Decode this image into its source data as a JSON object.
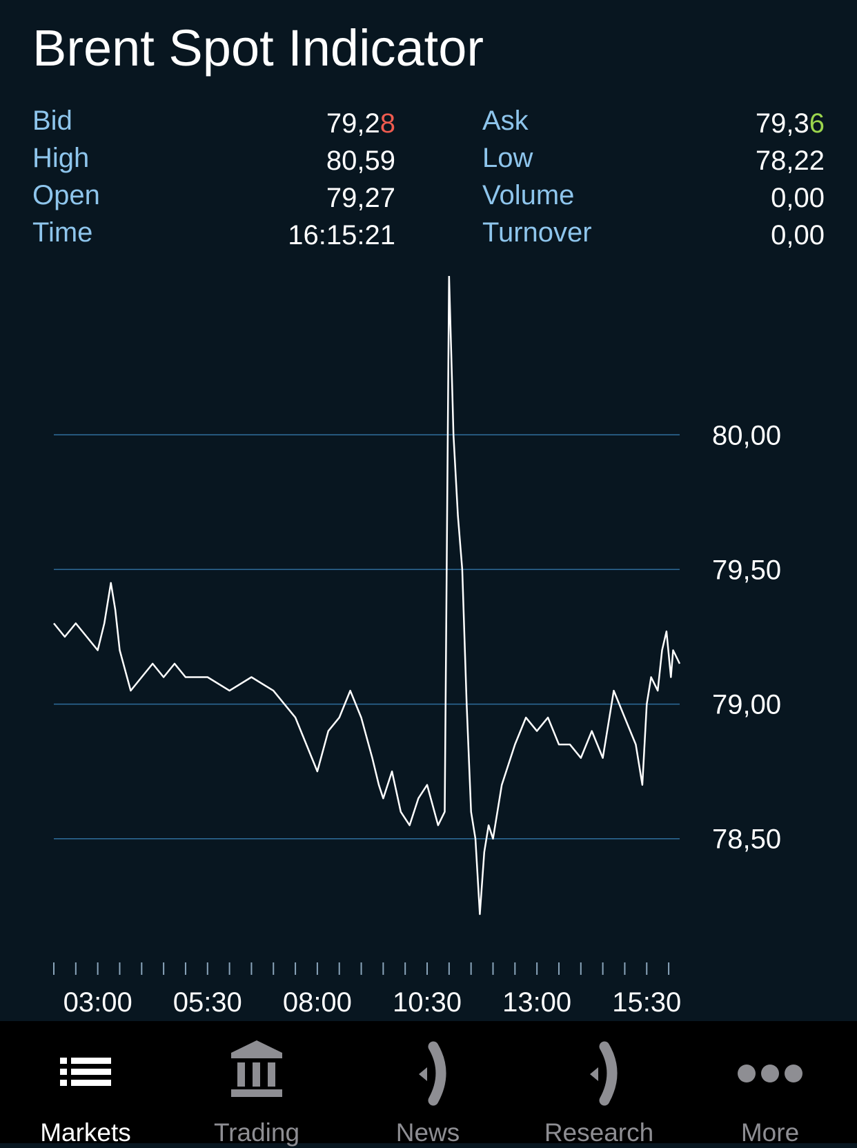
{
  "title": "Brent Spot Indicator",
  "quote": {
    "bid": {
      "label": "Bid",
      "value_main": "79,2",
      "value_last": "8",
      "last_color": "#ee5b4f"
    },
    "ask": {
      "label": "Ask",
      "value_main": "79,3",
      "value_last": "6",
      "last_color": "#9bd54d"
    },
    "high": {
      "label": "High",
      "value": "80,59"
    },
    "low": {
      "label": "Low",
      "value": "78,22"
    },
    "open": {
      "label": "Open",
      "value": "79,27"
    },
    "volume": {
      "label": "Volume",
      "value": "0,00"
    },
    "time": {
      "label": "Time",
      "value": "16:15:21"
    },
    "turnover": {
      "label": "Turnover",
      "value": "0,00"
    }
  },
  "chart_data": {
    "type": "line",
    "y_tick_labels": [
      "80,00",
      "79,50",
      "79,00",
      "78,50"
    ],
    "y_ticks": [
      80.0,
      79.5,
      79.0,
      78.5
    ],
    "ylim": [
      78.22,
      80.59
    ],
    "x_tick_labels": [
      "03:00",
      "05:30",
      "08:00",
      "10:30",
      "13:00",
      "15:30"
    ],
    "x_tick_hours": [
      3.0,
      5.5,
      8.0,
      10.5,
      13.0,
      15.5
    ],
    "xlim_hours": [
      2.0,
      16.25
    ],
    "minor_tick_interval_hours": 0.5,
    "grid": "horizontal",
    "colors": {
      "line": "#ffffff",
      "grid": "#2f6e9c",
      "ticks": "#8aa5bb",
      "labels": "#ffffff"
    },
    "series": [
      {
        "x_hours": [
          2.0,
          2.25,
          2.5,
          2.75,
          3.0,
          3.15,
          3.3,
          3.4,
          3.5,
          3.75,
          4.0,
          4.25,
          4.5,
          4.75,
          5.0,
          5.5,
          6.0,
          6.5,
          7.0,
          7.5,
          7.75,
          8.0,
          8.25,
          8.5,
          8.75,
          9.0,
          9.25,
          9.4,
          9.5,
          9.7,
          9.9,
          10.1,
          10.3,
          10.5,
          10.75,
          10.9,
          11.0,
          11.05,
          11.1,
          11.2,
          11.3,
          11.4,
          11.5,
          11.6,
          11.7,
          11.8,
          11.9,
          12.0,
          12.2,
          12.5,
          12.75,
          13.0,
          13.25,
          13.5,
          13.75,
          14.0,
          14.25,
          14.5,
          14.75,
          15.0,
          15.25,
          15.4,
          15.5,
          15.6,
          15.75,
          15.85,
          15.95,
          16.05,
          16.1,
          16.25
        ],
        "values": [
          79.3,
          79.25,
          79.3,
          79.25,
          79.2,
          79.3,
          79.45,
          79.35,
          79.2,
          79.05,
          79.1,
          79.15,
          79.1,
          79.15,
          79.1,
          79.1,
          79.05,
          79.1,
          79.05,
          78.95,
          78.85,
          78.75,
          78.9,
          78.95,
          79.05,
          78.95,
          78.8,
          78.7,
          78.65,
          78.75,
          78.6,
          78.55,
          78.65,
          78.7,
          78.55,
          78.6,
          80.59,
          80.3,
          80.0,
          79.7,
          79.5,
          79.0,
          78.6,
          78.5,
          78.22,
          78.45,
          78.55,
          78.5,
          78.7,
          78.85,
          78.95,
          78.9,
          78.95,
          78.85,
          78.85,
          78.8,
          78.9,
          78.8,
          79.05,
          78.95,
          78.85,
          78.7,
          79.0,
          79.1,
          79.05,
          79.2,
          79.27,
          79.1,
          79.2,
          79.15
        ]
      }
    ]
  },
  "tabbar": {
    "tabs": [
      {
        "label": "Markets",
        "icon": "list-icon",
        "active": true
      },
      {
        "label": "Trading",
        "icon": "bank-icon",
        "active": false
      },
      {
        "label": "News",
        "icon": "broadcast-icon",
        "active": false
      },
      {
        "label": "Research",
        "icon": "broadcast-icon",
        "active": false
      },
      {
        "label": "More",
        "icon": "more-dots-icon",
        "active": false
      }
    ]
  }
}
